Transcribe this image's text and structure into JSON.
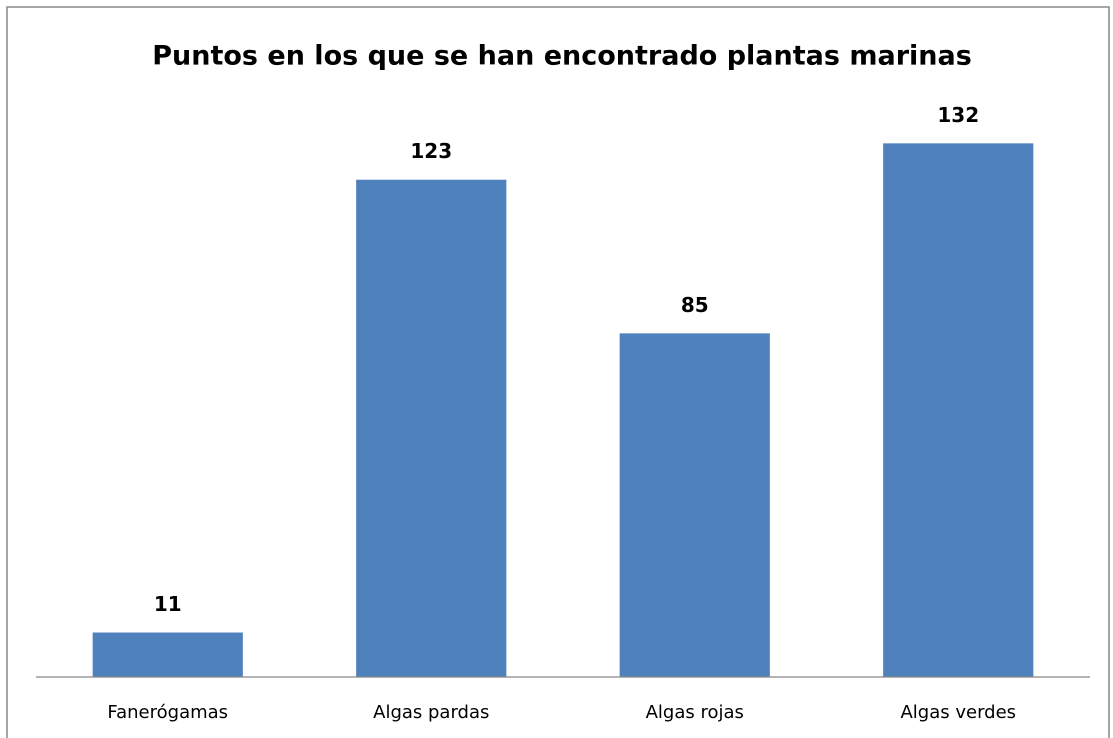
{
  "chart_data": {
    "type": "bar",
    "title": "Puntos en los que se han encontrado plantas marinas",
    "categories": [
      "Fanerógamas",
      "Algas pardas",
      "Algas rojas",
      "Algas verdes"
    ],
    "values": [
      11,
      123,
      85,
      132
    ],
    "color": "#4f81bd",
    "ylim": [
      0,
      140
    ]
  }
}
